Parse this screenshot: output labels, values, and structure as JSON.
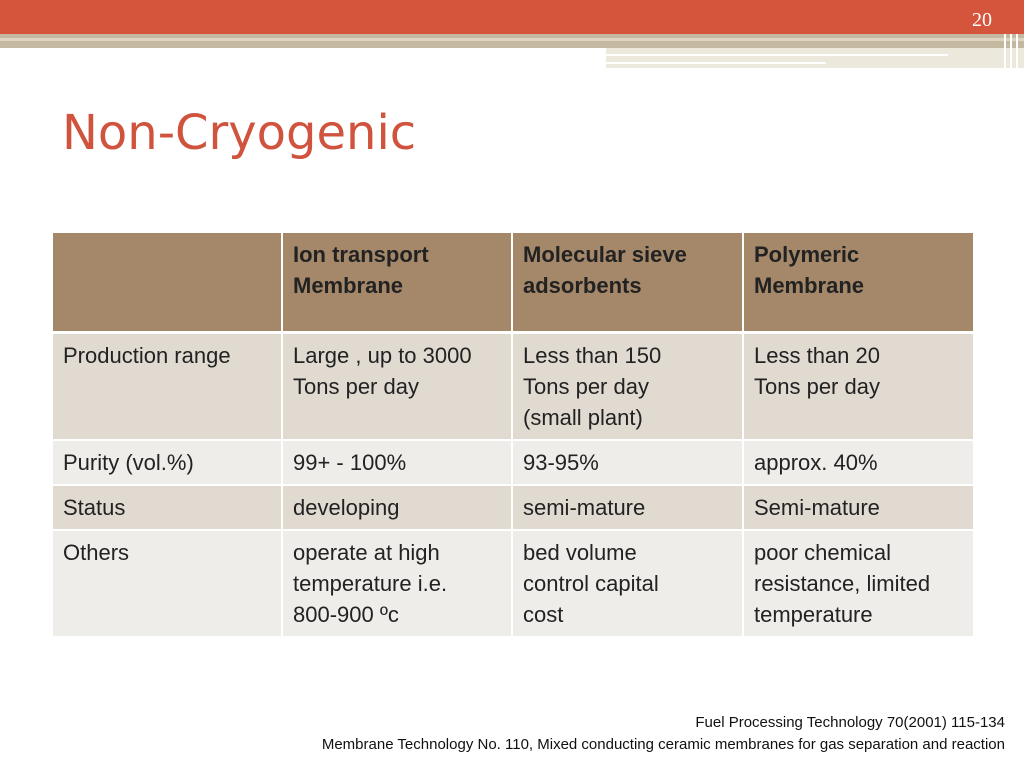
{
  "slide": {
    "page_number": "20",
    "title": "Non-Cryogenic"
  },
  "table": {
    "headers": [
      "",
      "Ion transport\nMembrane",
      "Molecular sieve\nadsorbents",
      "Polymeric\nMembrane"
    ],
    "rows": [
      [
        "Production range",
        "Large , up to 3000\nTons per day",
        "Less than 150\nTons per day\n(small plant)",
        "Less than 20\nTons per day"
      ],
      [
        "Purity  (vol.%)",
        "99+ - 100%",
        "93-95%",
        "approx. 40%"
      ],
      [
        "Status",
        "developing",
        "semi-mature",
        "Semi-mature"
      ],
      [
        "Others",
        "operate at high\ntemperature i.e.\n800-900 ºc",
        "bed volume\ncontrol capital\ncost",
        "poor chemical\nresistance, limited\ntemperature"
      ]
    ]
  },
  "footer": {
    "ref1": "Fuel Processing Technology 70(2001) 115-134",
    "ref2": "Membrane Technology No. 110, Mixed conducting ceramic membranes for gas separation and reaction"
  },
  "colors": {
    "accent": "#d4553c",
    "header_fill": "#a5886a",
    "row_dark": "#e0dad1",
    "row_light": "#efedea"
  }
}
